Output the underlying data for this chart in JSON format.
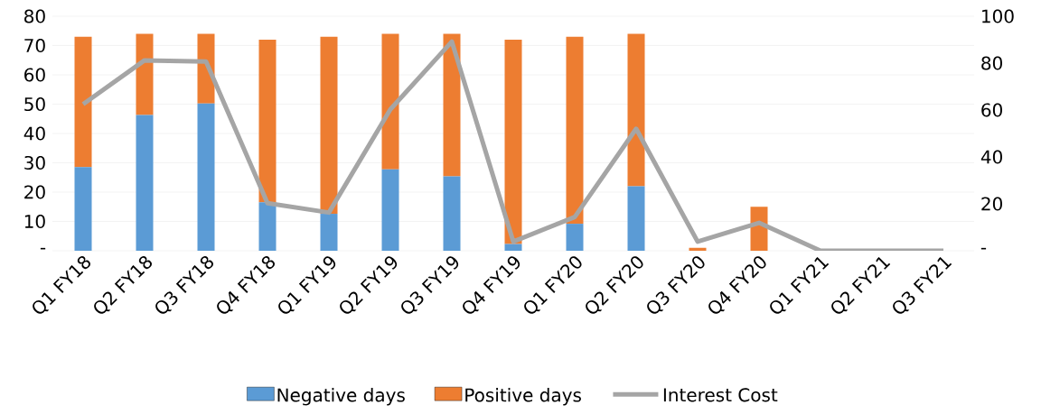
{
  "chart_data": {
    "type": "bar",
    "stacked": true,
    "categories": [
      "Q1 FY18",
      "Q2 FY18",
      "Q3 FY18",
      "Q4 FY18",
      "Q1 FY19",
      "Q2 FY19",
      "Q3 FY19",
      "Q4 FY19",
      "Q1 FY20",
      "Q2 FY20",
      "Q3 FY20",
      "Q4 FY20",
      "Q1 FY21",
      "Q2 FY21",
      "Q3 FY21"
    ],
    "series": [
      {
        "name": "Negative days",
        "color": "#5b9bd5",
        "values": [
          28.5,
          46.3,
          50.2,
          16.5,
          12.6,
          27.8,
          25.4,
          2.3,
          9.2,
          22.0,
          0,
          0,
          0,
          0,
          0
        ]
      },
      {
        "name": "Positive days",
        "color": "#ed7d31",
        "values": [
          44.5,
          27.7,
          23.8,
          55.5,
          60.4,
          46.2,
          48.6,
          69.7,
          63.8,
          52.0,
          1,
          15,
          0,
          0,
          0
        ]
      },
      {
        "name": "Interest Cost",
        "type": "line",
        "axis": "y2",
        "color": "#a5a5a5",
        "values": [
          62.5,
          81.2,
          80.7,
          20.3,
          16.3,
          60.3,
          89.2,
          3.9,
          14.4,
          52,
          3.9,
          11.9,
          0,
          0,
          0
        ]
      }
    ],
    "ylim": [
      0,
      80
    ],
    "yticks": [
      {
        "value": 0,
        "label": "-"
      },
      10,
      20,
      30,
      40,
      50,
      60,
      70,
      80
    ],
    "y2lim": [
      0,
      100
    ],
    "y2ticks": [
      {
        "value": 0,
        "label": "-"
      },
      20,
      40,
      60,
      80,
      100
    ],
    "grid": "y",
    "legend": "bottom",
    "marker": "none",
    "line_style": "solid"
  }
}
